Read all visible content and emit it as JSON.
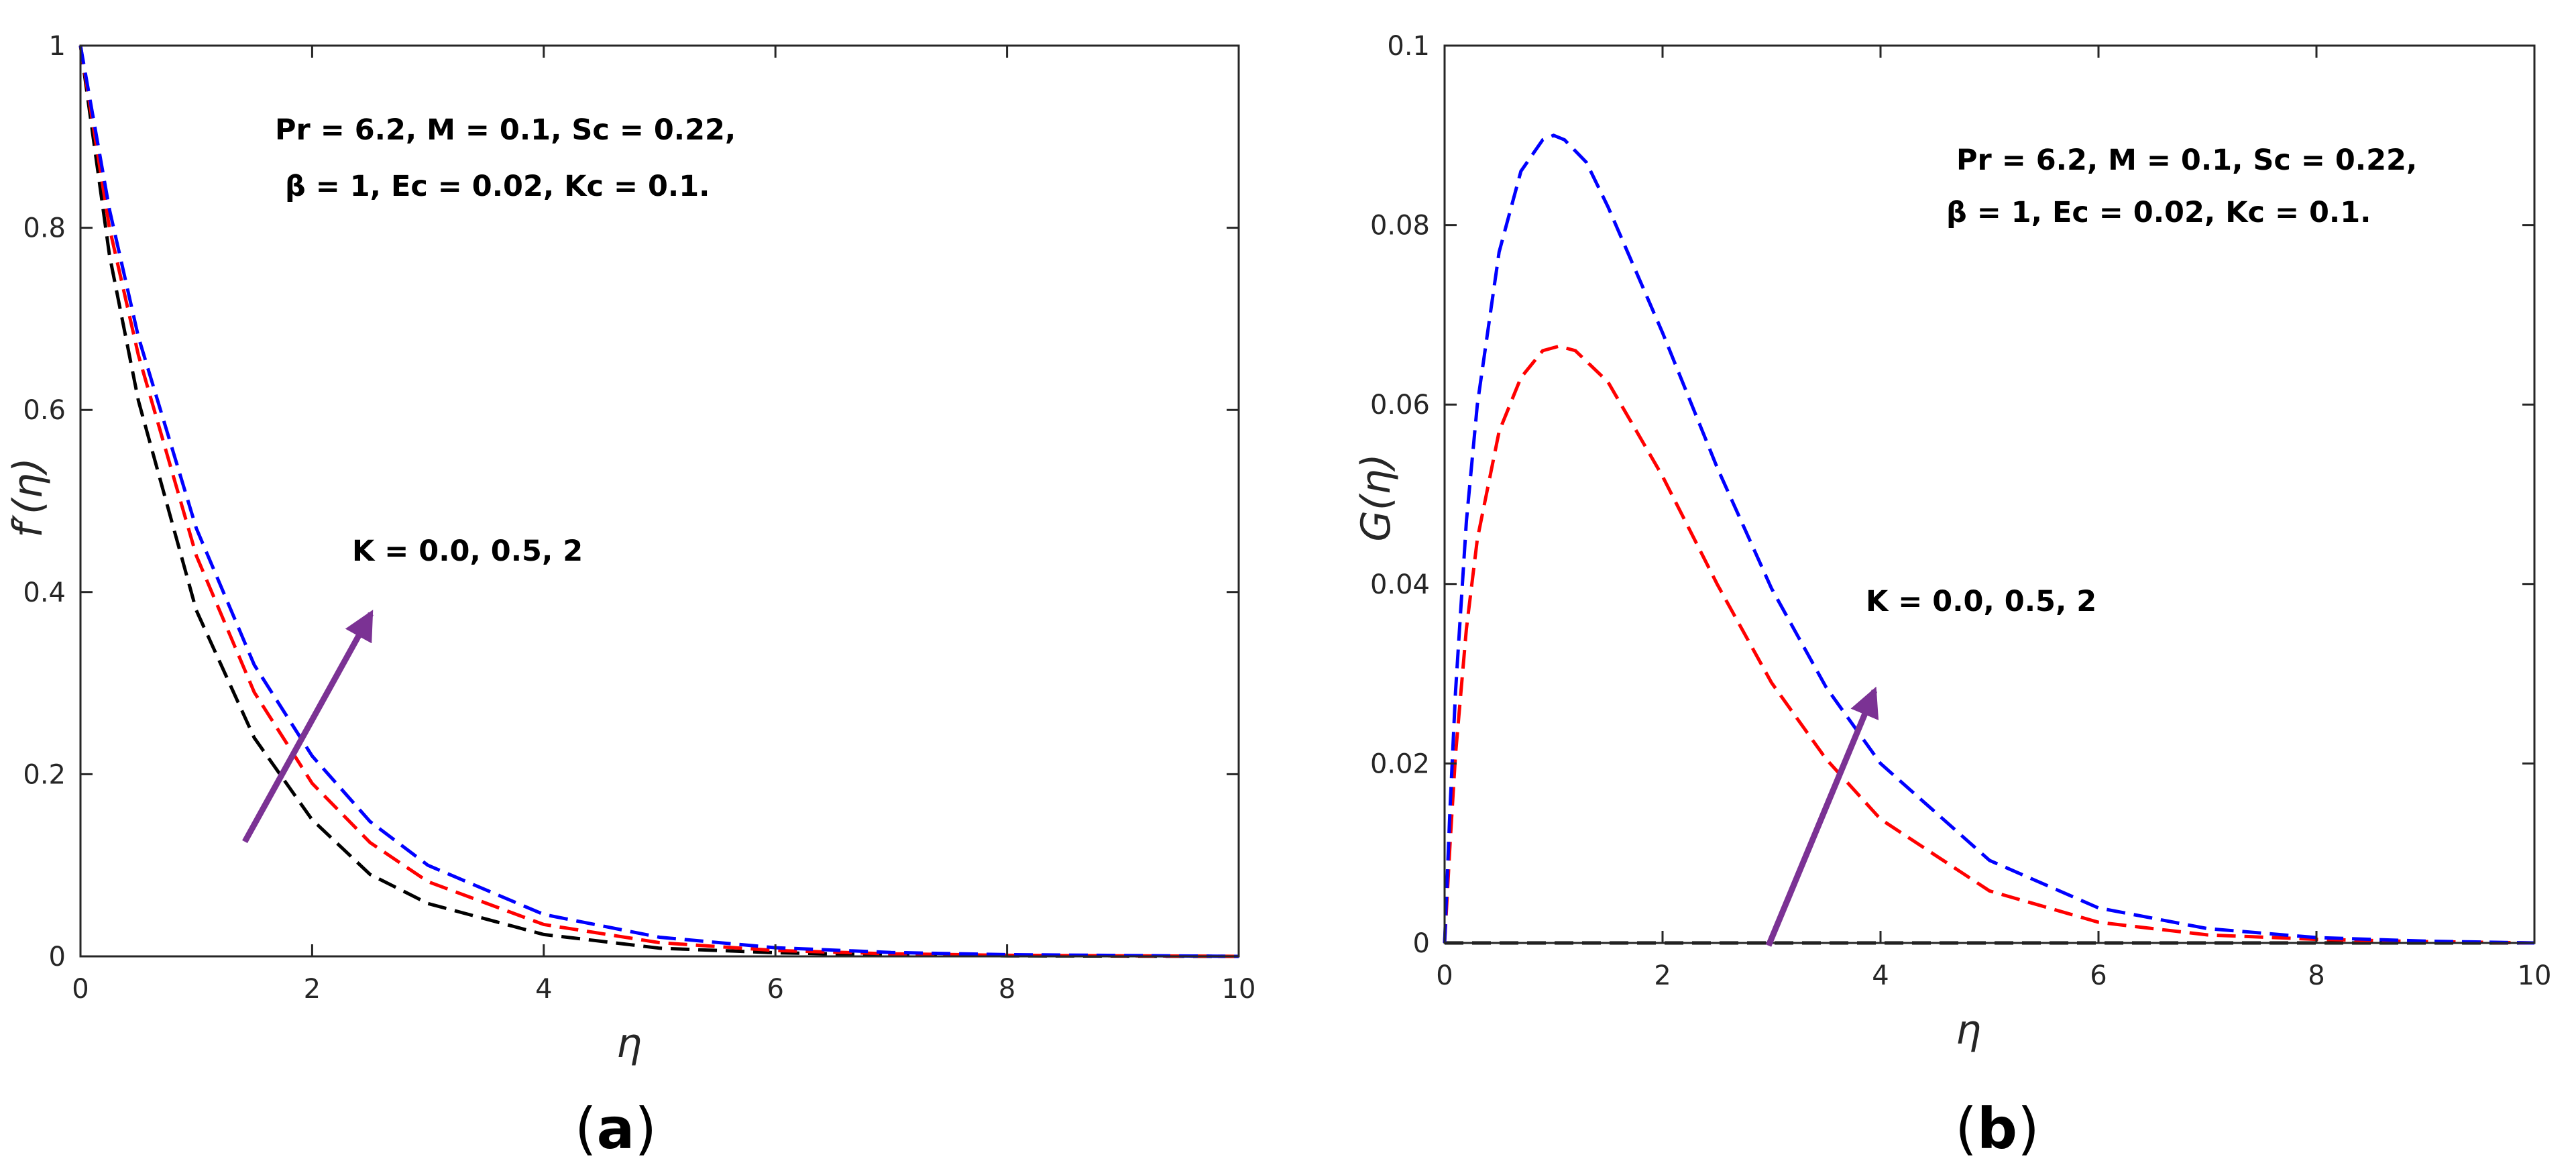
{
  "chart_data": [
    {
      "type": "line",
      "panel_label": "a",
      "xlabel": "η",
      "ylabel": "f′(η)",
      "xlim": [
        0,
        10
      ],
      "ylim": [
        0,
        1
      ],
      "xticks": [
        "0",
        "2",
        "4",
        "6",
        "8",
        "10"
      ],
      "yticks": [
        "0",
        "0.2",
        "0.4",
        "0.6",
        "0.8",
        "1"
      ],
      "grid": false,
      "line_style": "dashed",
      "annotation_lines": [
        "Pr = 6.2, M = 0.1, Sc = 0.22,",
        "β = 1, Ec = 0.02, Kc = 0.1."
      ],
      "arrow_label": "K = 0.0, 0.5, 2",
      "arrow_color": "#7B3294",
      "series": [
        {
          "color": "#000000",
          "x": [
            0,
            0.25,
            0.5,
            1,
            1.5,
            2,
            2.5,
            3,
            4,
            5,
            6,
            7,
            8,
            10
          ],
          "y": [
            1,
            0.77,
            0.61,
            0.38,
            0.24,
            0.15,
            0.09,
            0.058,
            0.024,
            0.009,
            0.004,
            0.0015,
            0.0006,
            0
          ]
        },
        {
          "color": "#FF0000",
          "x": [
            0,
            0.25,
            0.5,
            1,
            1.5,
            2,
            2.5,
            3,
            4,
            5,
            6,
            7,
            8,
            10
          ],
          "y": [
            1,
            0.8,
            0.66,
            0.44,
            0.29,
            0.19,
            0.125,
            0.082,
            0.035,
            0.015,
            0.0065,
            0.0028,
            0.0012,
            0
          ]
        },
        {
          "color": "#0000FF",
          "x": [
            0,
            0.25,
            0.5,
            1,
            1.5,
            2,
            2.5,
            3,
            4,
            5,
            6,
            7,
            8,
            10
          ],
          "y": [
            1,
            0.82,
            0.68,
            0.47,
            0.32,
            0.22,
            0.148,
            0.1,
            0.046,
            0.021,
            0.0095,
            0.0043,
            0.0019,
            0
          ]
        }
      ]
    },
    {
      "type": "line",
      "panel_label": "b",
      "xlabel": "η",
      "ylabel": "G(η)",
      "xlim": [
        0,
        10
      ],
      "ylim": [
        0,
        0.1
      ],
      "xticks": [
        "0",
        "2",
        "4",
        "6",
        "8",
        "10"
      ],
      "yticks": [
        "0",
        "0.02",
        "0.04",
        "0.06",
        "0.08",
        "0.1"
      ],
      "grid": false,
      "line_style": "dashed",
      "annotation_lines": [
        "Pr = 6.2, M = 0.1, Sc = 0.22,",
        "β = 1, Ec = 0.02, Kc = 0.1."
      ],
      "arrow_label": "K = 0.0, 0.5, 2",
      "arrow_color": "#7B3294",
      "series": [
        {
          "color": "#000000",
          "x": [
            0,
            10
          ],
          "y": [
            0,
            0
          ]
        },
        {
          "color": "#FF0000",
          "x": [
            0,
            0.05,
            0.1,
            0.2,
            0.3,
            0.5,
            0.7,
            0.9,
            1.05,
            1.2,
            1.5,
            2,
            2.5,
            3,
            3.5,
            4,
            5,
            6,
            7,
            8,
            9,
            10
          ],
          "y": [
            0,
            0.011,
            0.021,
            0.035,
            0.045,
            0.057,
            0.063,
            0.066,
            0.0665,
            0.066,
            0.0625,
            0.052,
            0.04,
            0.029,
            0.0205,
            0.0138,
            0.0058,
            0.0023,
            0.0009,
            0.0004,
            0.00015,
            0
          ]
        },
        {
          "color": "#0000FF",
          "x": [
            0,
            0.05,
            0.1,
            0.2,
            0.3,
            0.5,
            0.7,
            0.9,
            1.0,
            1.1,
            1.3,
            1.5,
            2,
            2.5,
            3,
            3.5,
            4,
            5,
            6,
            7,
            8,
            9,
            10
          ],
          "y": [
            0,
            0.015,
            0.028,
            0.047,
            0.06,
            0.077,
            0.086,
            0.0895,
            0.09,
            0.0895,
            0.087,
            0.082,
            0.068,
            0.053,
            0.0395,
            0.0285,
            0.02,
            0.0092,
            0.0039,
            0.0016,
            0.0006,
            0.0002,
            0
          ]
        }
      ]
    }
  ]
}
